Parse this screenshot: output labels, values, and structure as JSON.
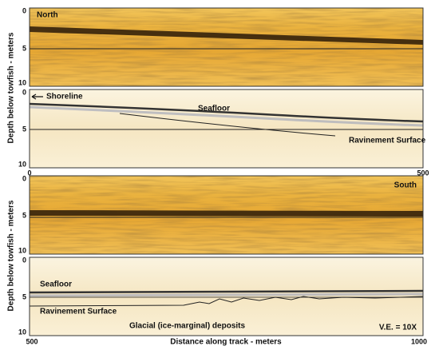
{
  "figure": {
    "y_axis_label": "Depth below towfish - meters",
    "x_axis_label": "Distance along track - meters",
    "top_xticks": [
      0,
      500
    ],
    "bottom_xticks": [
      500,
      1000
    ],
    "panels": [
      {
        "label": "North",
        "yticks": [
          0,
          5,
          10
        ]
      },
      {
        "annotations": [
          "Shoreline",
          "Seafloor",
          "Ravinement Surface"
        ],
        "yticks": [
          0,
          5,
          10
        ]
      },
      {
        "label": "South",
        "yticks": [
          0,
          5,
          10
        ]
      },
      {
        "annotations": [
          "Seafloor",
          "Ravinement Surface",
          "Glacial (ice-marginal) deposits",
          "V.E. = 10X"
        ],
        "yticks": [
          0,
          5,
          10
        ]
      }
    ]
  }
}
